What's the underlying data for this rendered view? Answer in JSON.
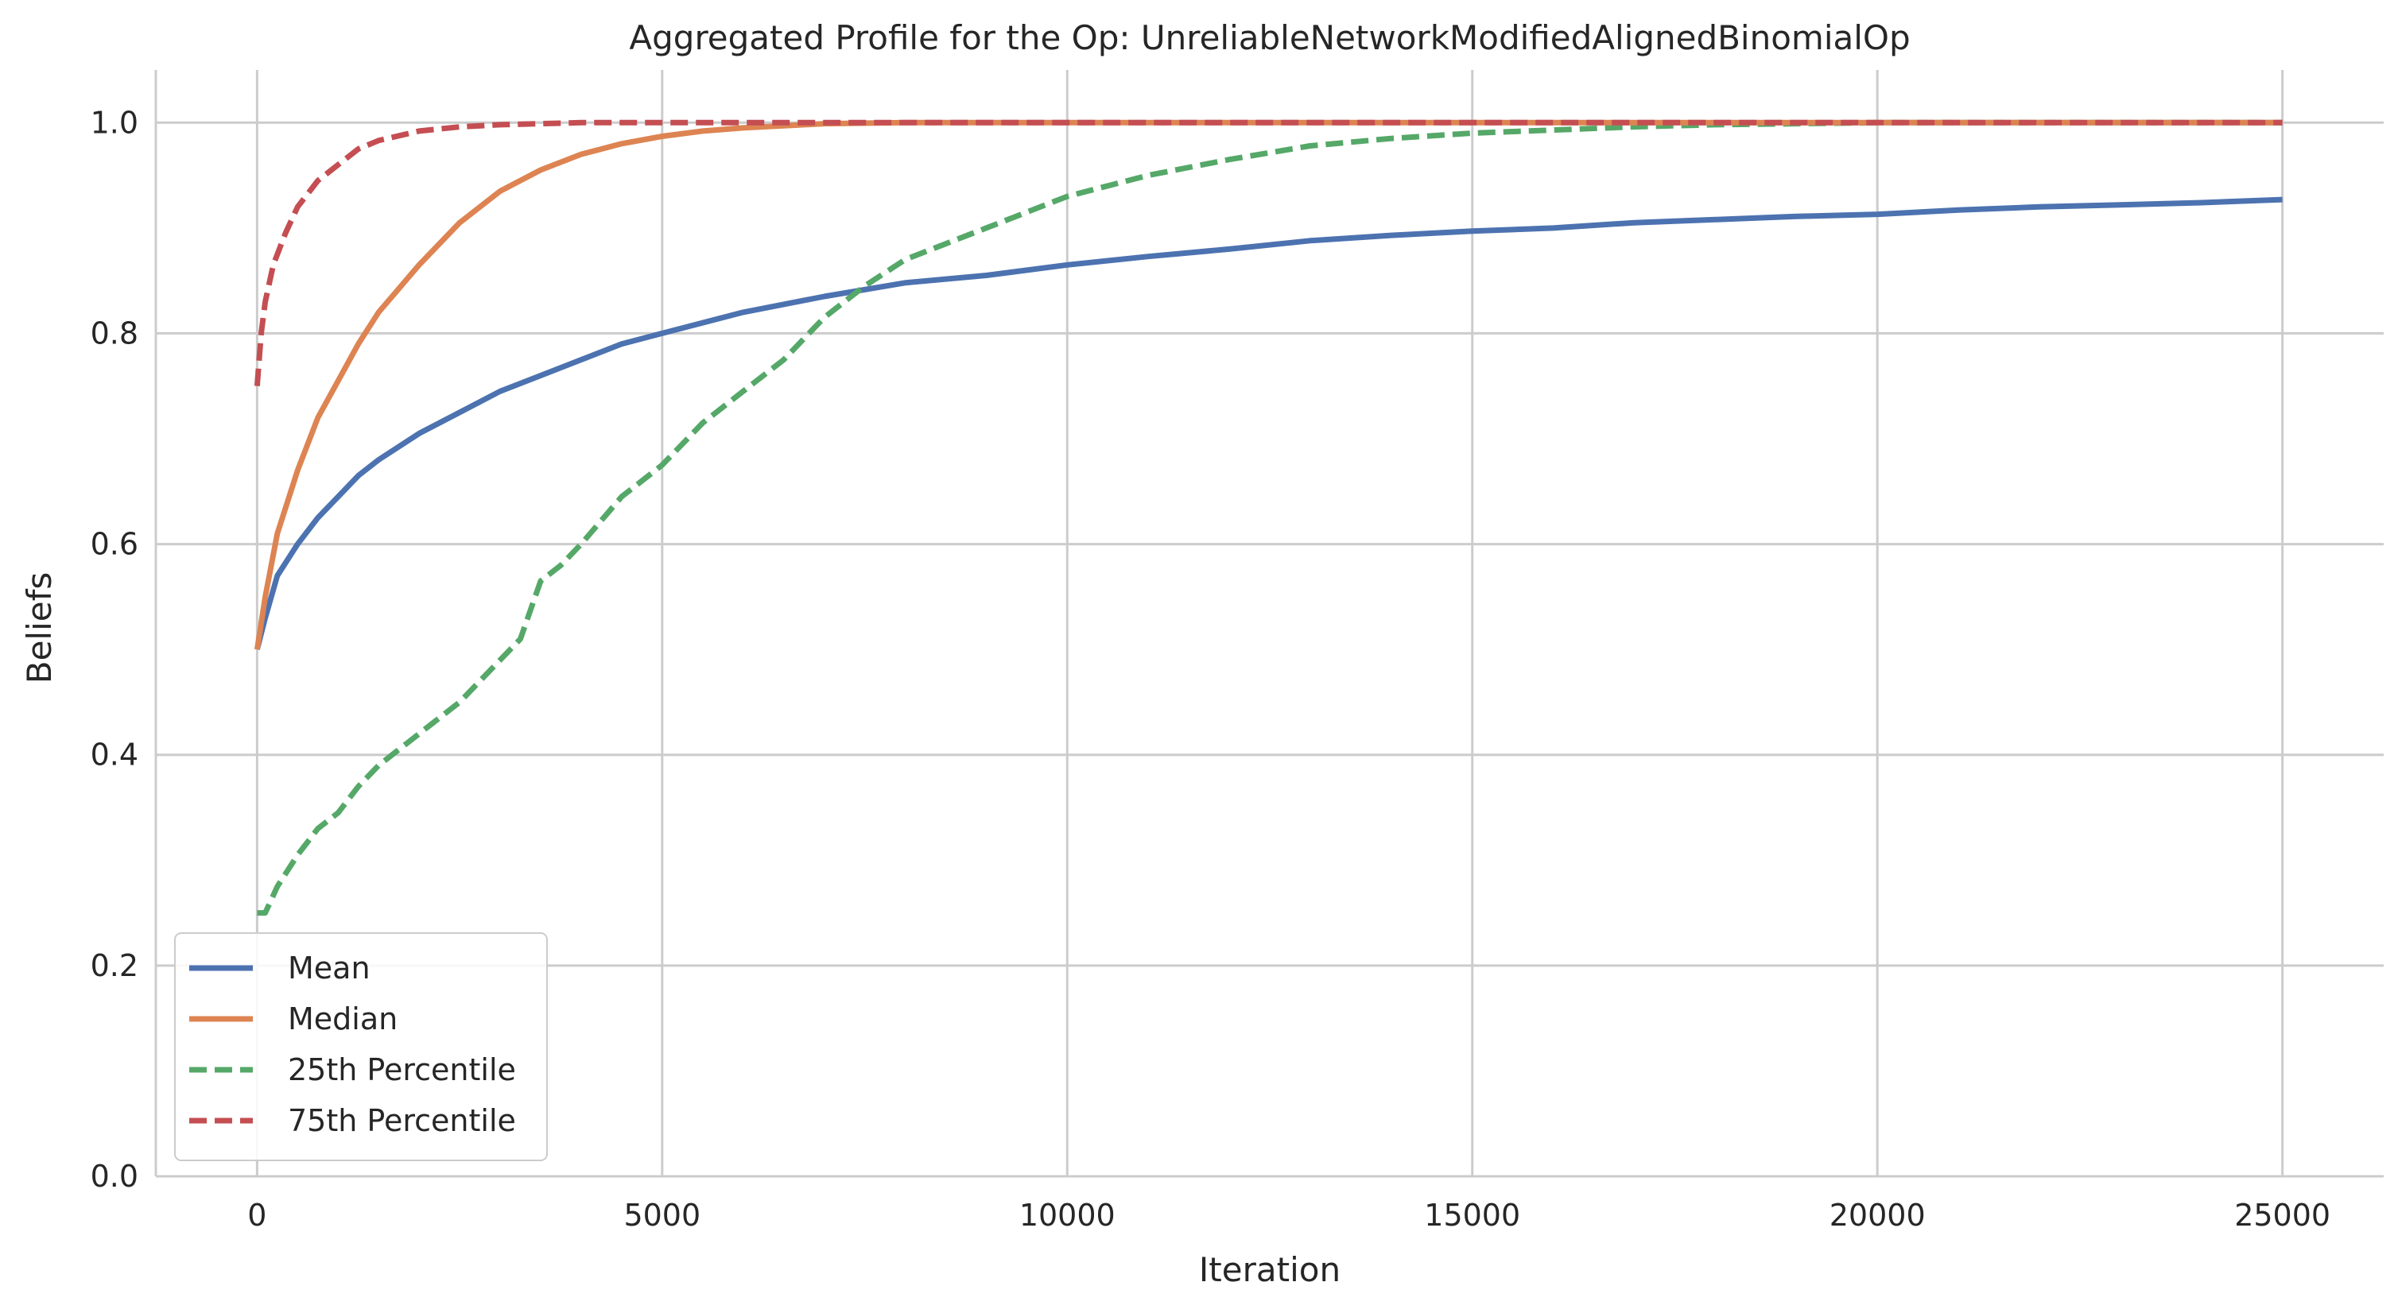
{
  "chart_data": {
    "type": "line",
    "title": "Aggregated Profile for the Op: UnreliableNetworkModifiedAlignedBinomialOp",
    "xlabel": "Iteration",
    "ylabel": "Beliefs",
    "xlim": [
      -1250,
      26250
    ],
    "ylim": [
      0.0,
      1.05
    ],
    "xticks": [
      0,
      5000,
      10000,
      15000,
      20000,
      25000
    ],
    "xtick_labels": [
      "0",
      "5000",
      "10000",
      "15000",
      "20000",
      "25000"
    ],
    "yticks": [
      0.0,
      0.2,
      0.4,
      0.6,
      0.8,
      1.0
    ],
    "ytick_labels": [
      "0.0",
      "0.2",
      "0.4",
      "0.6",
      "0.8",
      "1.0"
    ],
    "grid": true,
    "legend_position": "lower-left",
    "series": [
      {
        "name": "Mean",
        "color": "#4c72b0",
        "dash": "solid",
        "x": [
          0,
          100,
          250,
          500,
          750,
          1000,
          1250,
          1500,
          2000,
          2500,
          3000,
          3500,
          4000,
          4500,
          5000,
          6000,
          7000,
          8000,
          9000,
          10000,
          11000,
          12000,
          13000,
          14000,
          15000,
          16000,
          17000,
          18000,
          19000,
          20000,
          21000,
          22000,
          23000,
          24000,
          25000
        ],
        "y": [
          0.5,
          0.53,
          0.57,
          0.6,
          0.625,
          0.645,
          0.665,
          0.68,
          0.705,
          0.725,
          0.745,
          0.76,
          0.775,
          0.79,
          0.8,
          0.82,
          0.835,
          0.848,
          0.855,
          0.865,
          0.873,
          0.88,
          0.888,
          0.893,
          0.897,
          0.9,
          0.905,
          0.908,
          0.911,
          0.913,
          0.917,
          0.92,
          0.922,
          0.924,
          0.927
        ]
      },
      {
        "name": "Median",
        "color": "#dd8452",
        "dash": "solid",
        "x": [
          0,
          100,
          250,
          500,
          750,
          1000,
          1250,
          1500,
          2000,
          2500,
          3000,
          3500,
          4000,
          4500,
          5000,
          5500,
          6000,
          6500,
          7000,
          8000,
          10000,
          15000,
          20000,
          25000
        ],
        "y": [
          0.5,
          0.55,
          0.61,
          0.67,
          0.72,
          0.755,
          0.79,
          0.82,
          0.865,
          0.905,
          0.935,
          0.955,
          0.97,
          0.98,
          0.987,
          0.992,
          0.995,
          0.997,
          0.999,
          1.0,
          1.0,
          1.0,
          1.0,
          1.0
        ]
      },
      {
        "name": "25th Percentile",
        "color": "#55a868",
        "dash": "dashed",
        "x": [
          0,
          100,
          250,
          500,
          750,
          1000,
          1250,
          1500,
          2000,
          2500,
          3000,
          3250,
          3500,
          3750,
          4000,
          4500,
          5000,
          5500,
          6000,
          6500,
          7000,
          7500,
          8000,
          8500,
          9000,
          9500,
          10000,
          11000,
          12000,
          13000,
          14000,
          15000,
          16000,
          17000,
          18000,
          19000,
          20000,
          22000,
          25000
        ],
        "y": [
          0.25,
          0.25,
          0.275,
          0.305,
          0.33,
          0.345,
          0.37,
          0.39,
          0.42,
          0.45,
          0.49,
          0.51,
          0.565,
          0.58,
          0.6,
          0.645,
          0.675,
          0.715,
          0.745,
          0.775,
          0.815,
          0.845,
          0.87,
          0.885,
          0.9,
          0.915,
          0.93,
          0.95,
          0.965,
          0.978,
          0.985,
          0.99,
          0.993,
          0.996,
          0.998,
          0.999,
          1.0,
          1.0,
          1.0
        ]
      },
      {
        "name": "75th Percentile",
        "color": "#c44e52",
        "dash": "dashed",
        "x": [
          0,
          50,
          100,
          200,
          350,
          500,
          750,
          1000,
          1250,
          1500,
          2000,
          2500,
          3000,
          3500,
          4000,
          5000,
          7500,
          10000,
          15000,
          20000,
          25000
        ],
        "y": [
          0.75,
          0.8,
          0.83,
          0.865,
          0.895,
          0.92,
          0.945,
          0.96,
          0.975,
          0.983,
          0.992,
          0.996,
          0.998,
          0.999,
          1.0,
          1.0,
          1.0,
          1.0,
          1.0,
          1.0,
          1.0
        ]
      }
    ]
  }
}
